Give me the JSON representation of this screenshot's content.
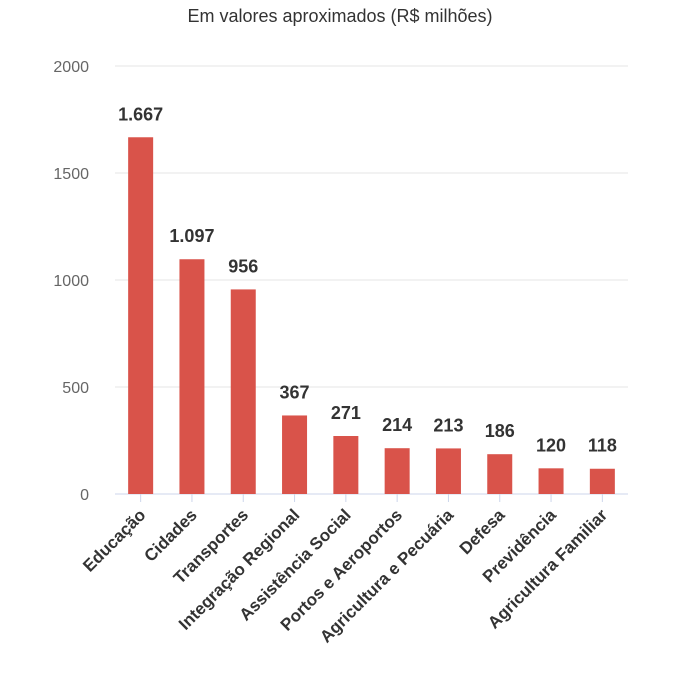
{
  "chart_data": {
    "type": "bar",
    "title": "Em valores aproximados (R$ milhões)",
    "xlabel": "",
    "ylabel": "",
    "ylim": [
      0,
      2000
    ],
    "yticks": [
      0,
      500,
      1000,
      1500,
      2000
    ],
    "ytick_labels": [
      "0",
      "500",
      "1000",
      "1500",
      "2000"
    ],
    "grid": true,
    "legend": "none",
    "categories": [
      "Educação",
      "Cidades",
      "Transportes",
      "Integração Regional",
      "Assistência Social",
      "Portos e Aeroportos",
      "Agricultura e Pecuária",
      "Defesa",
      "Previdência",
      "Agricultura Familiar"
    ],
    "values": [
      1667,
      1097,
      956,
      367,
      271,
      214,
      213,
      186,
      120,
      118
    ],
    "data_labels": [
      "1.667",
      "1.097",
      "956",
      "367",
      "271",
      "214",
      "213",
      "186",
      "120",
      "118"
    ],
    "bar_color": "#d9534a"
  }
}
